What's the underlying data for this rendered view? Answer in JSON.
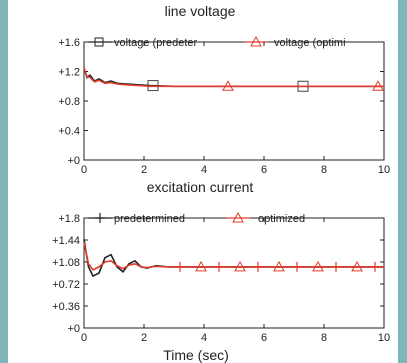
{
  "chart_data": [
    {
      "type": "line",
      "title": "line voltage",
      "xlabel": "",
      "ylabel": "",
      "xlim": [
        0,
        10
      ],
      "ylim": [
        0,
        1.6
      ],
      "x_ticks": [
        0,
        2,
        4,
        6,
        8,
        10
      ],
      "x_tick_labels": [
        "0",
        "2",
        "4",
        "6",
        "8",
        "10"
      ],
      "y_ticks": [
        0,
        0.4,
        0.8,
        1.2,
        1.6
      ],
      "y_tick_labels": [
        "+0",
        "+0.4",
        "+0.8",
        "+1.2",
        "+1.6"
      ],
      "legend_position": "top",
      "series": [
        {
          "name": "voltage (predeter",
          "color": "#222222",
          "marker": "square",
          "x": [
            0,
            0.1,
            0.2,
            0.35,
            0.5,
            0.7,
            0.9,
            1.1,
            1.4,
            1.8,
            2.2,
            3,
            4,
            5,
            6,
            7,
            8,
            9,
            10
          ],
          "y": [
            1.25,
            1.12,
            1.15,
            1.07,
            1.1,
            1.05,
            1.07,
            1.04,
            1.03,
            1.02,
            1.01,
            1.0,
            1.0,
            1.0,
            1.0,
            1.0,
            1.0,
            1.0,
            1.0
          ],
          "marker_x": [
            2.3,
            7.3
          ]
        },
        {
          "name": "voltage (optimi",
          "color": "#e03c2c",
          "marker": "triangle",
          "x": [
            0,
            0.1,
            0.2,
            0.35,
            0.5,
            0.7,
            0.9,
            1.1,
            1.4,
            1.8,
            2.2,
            3,
            4,
            5,
            6,
            7,
            8,
            9,
            10
          ],
          "y": [
            1.25,
            1.13,
            1.12,
            1.06,
            1.08,
            1.04,
            1.05,
            1.03,
            1.02,
            1.01,
            1.0,
            1.0,
            1.0,
            1.0,
            1.0,
            1.0,
            1.0,
            1.0,
            1.0
          ],
          "marker_x": [
            4.8,
            9.8
          ]
        }
      ]
    },
    {
      "type": "line",
      "title": "excitation current",
      "xlabel": "Time (sec)",
      "ylabel": "",
      "xlim": [
        0,
        10
      ],
      "ylim": [
        0,
        1.8
      ],
      "x_ticks": [
        0,
        2,
        4,
        6,
        8,
        10
      ],
      "x_tick_labels": [
        "0",
        "2",
        "4",
        "6",
        "8",
        "10"
      ],
      "y_ticks": [
        0,
        0.36,
        0.72,
        1.08,
        1.44,
        1.8
      ],
      "y_tick_labels": [
        "+0",
        "+0.36",
        "+0.72",
        "+1.08",
        "+1.44",
        "+1.8"
      ],
      "legend_position": "top",
      "series": [
        {
          "name": "predetermined",
          "color": "#222222",
          "marker": "plus",
          "x": [
            0,
            0.15,
            0.3,
            0.5,
            0.7,
            0.9,
            1.1,
            1.3,
            1.5,
            1.7,
            1.9,
            2.1,
            2.4,
            2.8,
            3.2,
            10
          ],
          "y": [
            1.45,
            1.0,
            0.85,
            0.9,
            1.15,
            1.2,
            1.0,
            0.92,
            1.05,
            1.1,
            1.0,
            0.98,
            1.02,
            1.0,
            1.0,
            1.0
          ],
          "marker_x": [
            3.2,
            4.5,
            5.8,
            7.1,
            8.4,
            9.7
          ]
        },
        {
          "name": "optimized",
          "color": "#e03c2c",
          "marker": "triangle",
          "x": [
            0,
            0.15,
            0.3,
            0.5,
            0.7,
            0.9,
            1.1,
            1.3,
            1.5,
            1.7,
            1.9,
            2.1,
            2.4,
            2.8,
            3.2,
            10
          ],
          "y": [
            1.4,
            1.05,
            0.95,
            1.0,
            1.08,
            1.1,
            1.02,
            0.97,
            1.03,
            1.05,
            1.0,
            0.99,
            1.01,
            1.0,
            1.0,
            1.0
          ],
          "marker_x": [
            3.9,
            5.2,
            6.5,
            7.8,
            9.1
          ]
        }
      ]
    }
  ]
}
